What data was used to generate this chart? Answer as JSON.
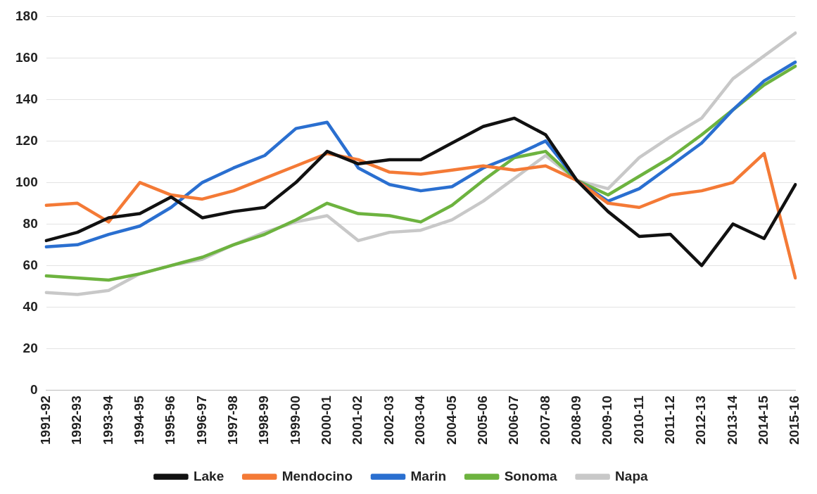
{
  "chart_data": {
    "type": "line",
    "categories": [
      "1991-92",
      "1992-93",
      "1993-94",
      "1994-95",
      "1995-96",
      "1996-97",
      "1997-98",
      "1998-99",
      "1999-00",
      "2000-01",
      "2001-02",
      "2002-03",
      "2003-04",
      "2004-05",
      "2005-06",
      "2006-07",
      "2007-08",
      "2008-09",
      "2009-10",
      "2010-11",
      "2011-12",
      "2012-13",
      "2013-14",
      "2014-15",
      "2015-16"
    ],
    "series": [
      {
        "name": "Lake",
        "color": "#111111",
        "values": [
          72,
          76,
          83,
          85,
          93,
          83,
          86,
          88,
          100,
          115,
          109,
          111,
          111,
          119,
          127,
          131,
          123,
          101,
          86,
          74,
          75,
          60,
          80,
          73,
          99
        ]
      },
      {
        "name": "Mendocino",
        "color": "#f47a36",
        "values": [
          89,
          90,
          81,
          100,
          94,
          92,
          96,
          102,
          108,
          114,
          111,
          105,
          104,
          106,
          108,
          106,
          108,
          101,
          90,
          88,
          94,
          96,
          100,
          114,
          54
        ]
      },
      {
        "name": "Marin",
        "color": "#2a6fd0",
        "values": [
          69,
          70,
          75,
          79,
          88,
          100,
          107,
          113,
          126,
          129,
          107,
          99,
          96,
          98,
          107,
          113,
          120,
          101,
          91,
          97,
          108,
          119,
          135,
          149,
          158
        ]
      },
      {
        "name": "Sonoma",
        "color": "#6db33f",
        "values": [
          55,
          54,
          53,
          56,
          60,
          64,
          70,
          75,
          82,
          90,
          85,
          84,
          81,
          89,
          101,
          112,
          115,
          101,
          94,
          103,
          112,
          123,
          135,
          147,
          156
        ]
      },
      {
        "name": "Napa",
        "color": "#c8c8c8",
        "values": [
          47,
          46,
          48,
          56,
          60,
          63,
          70,
          76,
          81,
          84,
          72,
          76,
          77,
          82,
          91,
          102,
          113,
          101,
          97,
          112,
          122,
          131,
          150,
          161,
          172
        ]
      }
    ],
    "ylim": [
      0,
      180
    ],
    "yticks": [
      0,
      20,
      40,
      60,
      80,
      100,
      120,
      140,
      160,
      180
    ],
    "grid": "y",
    "legend": "bottom",
    "marker": "none",
    "line_style": "solid"
  }
}
